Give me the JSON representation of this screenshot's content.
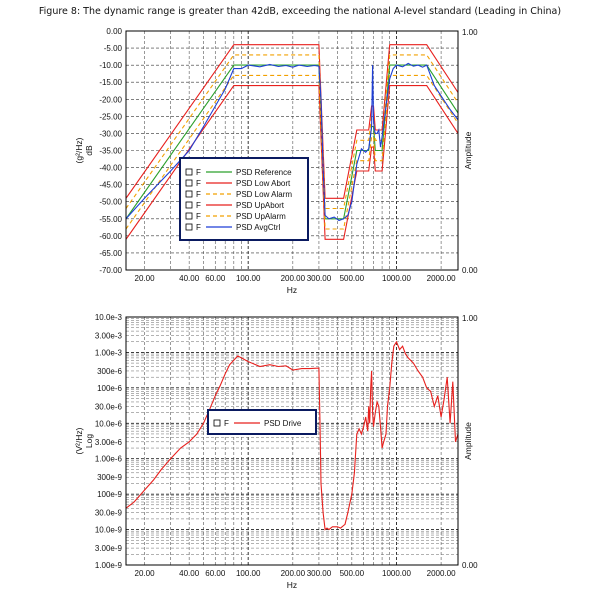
{
  "caption": "Figure 8: The dynamic range is greater than 42dB, exceeding the national A-level standard (Leading in China)",
  "checkbox_label": "F",
  "chart_data": [
    {
      "type": "line",
      "title": "",
      "xlabel": "Hz",
      "ylabel": "(g²/Hz) dB",
      "y2label": "Amplitude",
      "xscale": "log",
      "xlim": [
        15,
        2600
      ],
      "ylim": [
        -70,
        0
      ],
      "xtick_values": [
        20,
        40,
        60,
        100,
        200,
        300,
        500,
        1000,
        2000
      ],
      "xtick_labels": [
        "20.00",
        "40.00",
        "60.00",
        "100.00",
        "200.00",
        "300.00",
        "500.00",
        "1000.00",
        "2000.00"
      ],
      "ytick_values": [
        0,
        -5,
        -10,
        -15,
        -20,
        -25,
        -30,
        -35,
        -40,
        -45,
        -50,
        -55,
        -60,
        -65,
        -70
      ],
      "ytick_labels": [
        "0.00",
        "-5.00",
        "-10.00",
        "-15.00",
        "-20.00",
        "-25.00",
        "-30.00",
        "-35.00",
        "-40.00",
        "-45.00",
        "-50.00",
        "-55.00",
        "-60.00",
        "-65.00",
        "-70.00"
      ],
      "y2tick_labels": [
        "1.00",
        "0.00"
      ],
      "legend_position": "lower-left",
      "series": [
        {
          "name": "PSD Reference",
          "color": "#2ca02c",
          "dash": "",
          "x": [
            15,
            80,
            300,
            330,
            440,
            540,
            650,
            680,
            700,
            720,
            800,
            900,
            1600,
            2600
          ],
          "y": [
            -55,
            -10,
            -10,
            -55,
            -55,
            -35,
            -35,
            -28,
            -28,
            -35,
            -35,
            -10,
            -10,
            -24
          ]
        },
        {
          "name": "PSD Low Abort",
          "color": "#e8211e",
          "dash": "",
          "x": [
            15,
            80,
            300,
            330,
            440,
            540,
            650,
            680,
            700,
            720,
            800,
            900,
            1600,
            2600
          ],
          "y": [
            -61,
            -16,
            -16,
            -61,
            -61,
            -41,
            -41,
            -34,
            -34,
            -41,
            -41,
            -16,
            -16,
            -30
          ]
        },
        {
          "name": "PSD Low Alarm",
          "color": "#f2a000",
          "dash": "4,3",
          "x": [
            15,
            80,
            300,
            330,
            440,
            540,
            650,
            680,
            700,
            720,
            800,
            900,
            1600,
            2600
          ],
          "y": [
            -58,
            -13,
            -13,
            -58,
            -58,
            -38,
            -38,
            -31,
            -31,
            -38,
            -38,
            -13,
            -13,
            -27
          ]
        },
        {
          "name": "PSD UpAbort",
          "color": "#e8211e",
          "dash": "",
          "x": [
            15,
            80,
            300,
            330,
            440,
            540,
            650,
            680,
            700,
            720,
            800,
            900,
            1600,
            2600
          ],
          "y": [
            -49,
            -4,
            -4,
            -49,
            -49,
            -29,
            -29,
            -22,
            -22,
            -29,
            -29,
            -4,
            -4,
            -18
          ]
        },
        {
          "name": "PSD UpAlarm",
          "color": "#f2a000",
          "dash": "4,3",
          "x": [
            15,
            80,
            300,
            330,
            440,
            540,
            650,
            680,
            700,
            720,
            800,
            900,
            1600,
            2600
          ],
          "y": [
            -52,
            -7,
            -7,
            -52,
            -52,
            -32,
            -32,
            -25,
            -25,
            -32,
            -32,
            -7,
            -7,
            -21
          ]
        },
        {
          "name": "PSD AvgCtrl",
          "color": "#1f3fd6",
          "dash": "",
          "x": [
            15,
            20,
            30,
            40,
            50,
            60,
            70,
            80,
            90,
            100,
            120,
            140,
            160,
            180,
            200,
            220,
            250,
            280,
            300,
            310,
            320,
            330,
            350,
            380,
            410,
            440,
            470,
            500,
            540,
            580,
            620,
            650,
            670,
            680,
            690,
            700,
            710,
            720,
            740,
            760,
            780,
            800,
            850,
            900,
            950,
            1000,
            1100,
            1200,
            1300,
            1400,
            1500,
            1600,
            1800,
            2000,
            2300,
            2600
          ],
          "y": [
            -55,
            -49,
            -41,
            -35,
            -28,
            -22,
            -17,
            -11,
            -11,
            -10,
            -10.5,
            -9.8,
            -10.4,
            -10.1,
            -10.6,
            -10,
            -10.4,
            -10.1,
            -10.3,
            -20,
            -40,
            -54,
            -55,
            -54.5,
            -55.5,
            -55,
            -54,
            -50,
            -39,
            -34.5,
            -35.5,
            -34.5,
            -30,
            -28,
            -10,
            -26,
            -29,
            -30,
            -30,
            -29,
            -34,
            -31,
            -22,
            -14,
            -11,
            -10,
            -10.5,
            -9.5,
            -10.3,
            -10,
            -10.6,
            -10,
            -16,
            -19,
            -23,
            -26
          ]
        }
      ]
    },
    {
      "type": "line",
      "title": "",
      "xlabel": "Hz",
      "ylabel": "(V²/Hz) Log",
      "y2label": "Amplitude",
      "xscale": "log",
      "yscale": "log",
      "xlim": [
        15,
        2600
      ],
      "ylim": [
        1e-09,
        0.01
      ],
      "xtick_values": [
        20,
        40,
        60,
        100,
        200,
        300,
        500,
        1000,
        2000
      ],
      "xtick_labels": [
        "20.00",
        "40.00",
        "60.00",
        "100.00",
        "200.00",
        "300.00",
        "500.00",
        "1000.00",
        "2000.00"
      ],
      "ytick_values": [
        0.01,
        0.003,
        0.001,
        0.0003,
        0.0001,
        3e-05,
        1e-05,
        3e-06,
        1e-06,
        3e-07,
        1e-07,
        3e-08,
        1e-08,
        3e-09,
        1e-09
      ],
      "ytick_labels": [
        "10.0e-3",
        "3.00e-3",
        "1.00e-3",
        "300e-6",
        "100e-6",
        "30.0e-6",
        "10.0e-6",
        "3.00e-6",
        "1.00e-6",
        "300e-9",
        "100e-9",
        "30.0e-9",
        "10.0e-9",
        "3.00e-9",
        "1.00e-9"
      ],
      "y2tick_labels": [
        "1.00",
        "0.00"
      ],
      "legend_position": "center-left",
      "series": [
        {
          "name": "PSD Drive",
          "color": "#e8211e",
          "dash": "",
          "x": [
            15,
            17,
            20,
            23,
            26,
            30,
            35,
            40,
            45,
            50,
            55,
            60,
            65,
            70,
            75,
            80,
            85,
            90,
            100,
            120,
            140,
            160,
            180,
            200,
            230,
            260,
            300,
            305,
            310,
            320,
            330,
            340,
            350,
            370,
            400,
            420,
            440,
            450,
            470,
            500,
            520,
            540,
            560,
            580,
            600,
            620,
            640,
            650,
            660,
            670,
            680,
            690,
            700,
            720,
            740,
            760,
            780,
            800,
            820,
            850,
            870,
            900,
            930,
            960,
            1000,
            1050,
            1100,
            1150,
            1200,
            1300,
            1400,
            1500,
            1600,
            1700,
            1800,
            1900,
            2000,
            2100,
            2200,
            2300,
            2400,
            2500,
            2600
          ],
          "y": [
            4e-08,
            6e-08,
            1.3e-07,
            2.5e-07,
            5e-07,
            1e-06,
            2e-06,
            3e-06,
            5e-06,
            1e-05,
            2.5e-05,
            6e-05,
            0.00012,
            0.00025,
            0.00045,
            0.0006,
            0.0008,
            0.0007,
            0.00055,
            0.0004,
            0.00045,
            0.0004,
            0.00042,
            0.00032,
            0.00035,
            0.00035,
            0.00036,
            1e-05,
            2e-07,
            3e-08,
            1e-08,
            1.1e-08,
            1e-08,
            1.2e-08,
            1.2e-08,
            1.1e-08,
            1.3e-08,
            1.4e-08,
            3e-08,
            1e-07,
            4e-07,
            5e-06,
            7e-06,
            5e-06,
            8e-06,
            1.5e-05,
            6e-06,
            3e-05,
            1e-05,
            0.0001,
            0.0003,
            2e-05,
            8e-06,
            2e-05,
            4e-05,
            3e-05,
            8e-06,
            2e-06,
            3e-06,
            5e-06,
            3e-05,
            0.0001,
            0.0005,
            0.0015,
            0.002,
            0.0012,
            0.0015,
            0.0009,
            0.0007,
            0.0005,
            0.0003,
            0.0002,
            0.0001,
            8e-05,
            3e-05,
            6e-05,
            1.5e-05,
            5e-05,
            0.0002,
            1e-05,
            0.00015,
            3e-06,
            5e-06
          ]
        }
      ]
    }
  ]
}
